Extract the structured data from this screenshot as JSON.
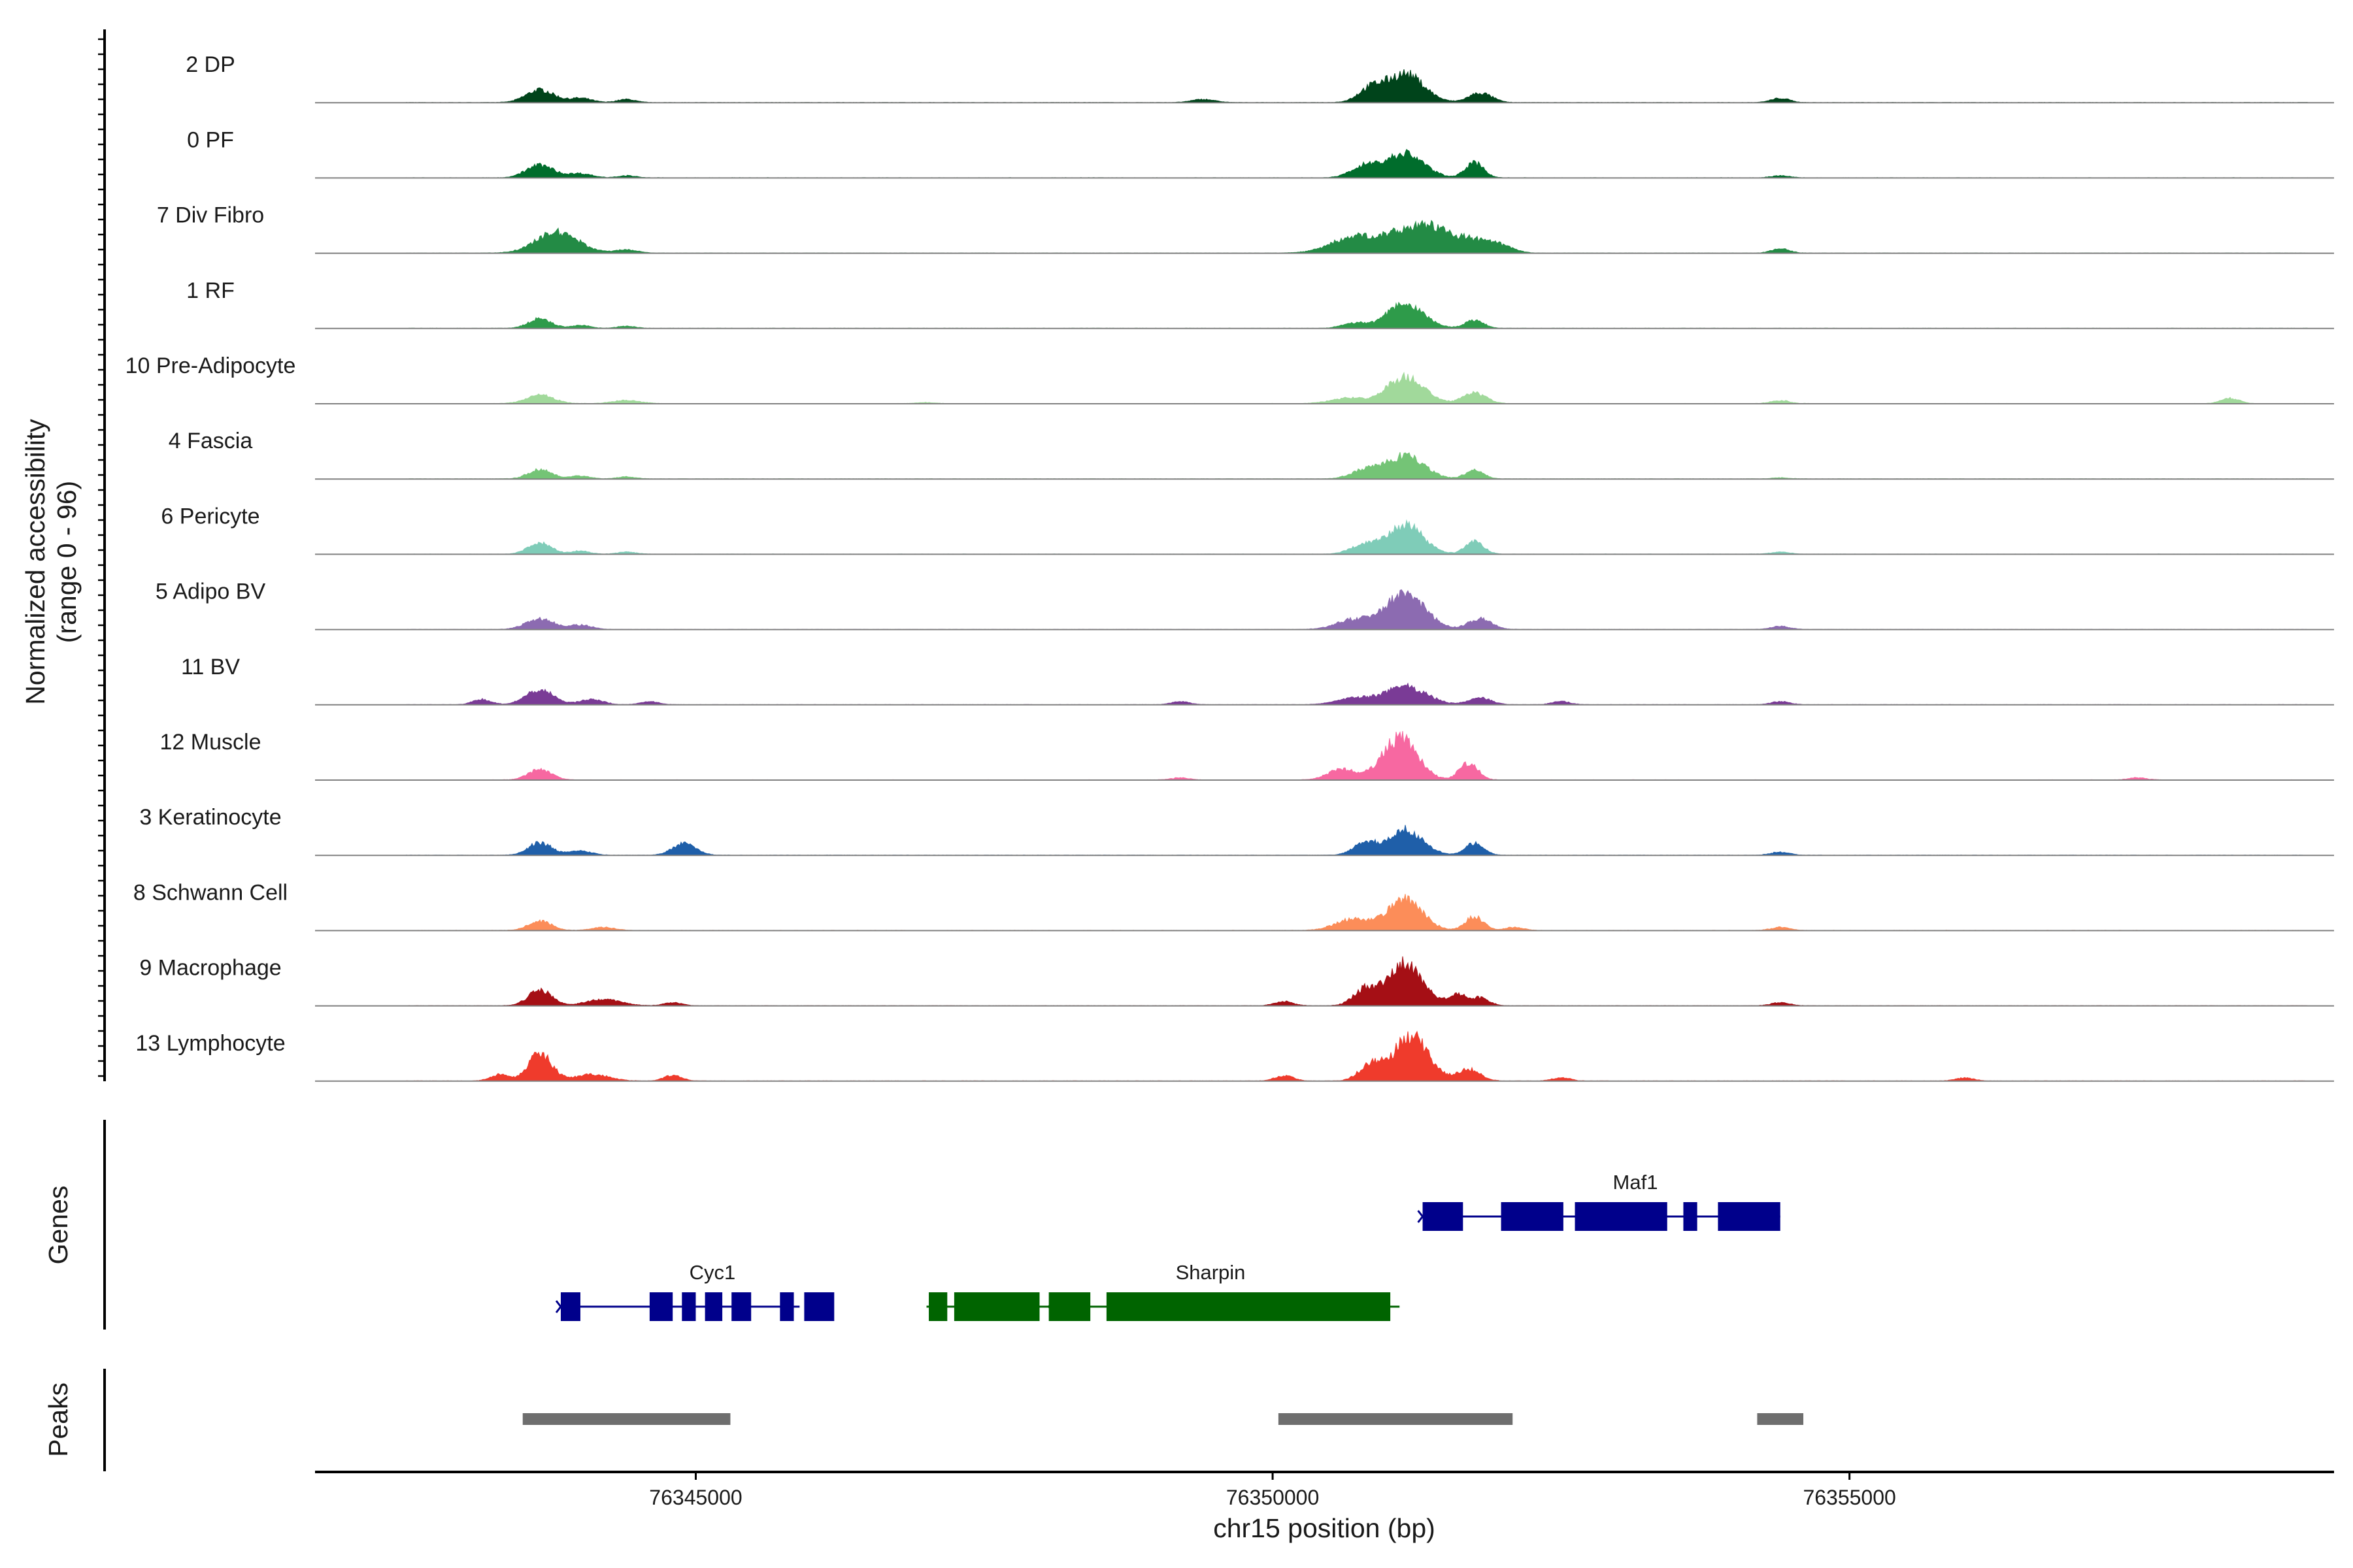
{
  "chart_data": {
    "type": "area",
    "title": "",
    "xlabel": "chr15 position (bp)",
    "ylabel": "Normalized accessibility",
    "ylabel_range": "(range 0 - 96)",
    "ylim": [
      0,
      96
    ],
    "xlim": [
      76341700,
      76359200
    ],
    "x_ticks": [
      76345000,
      76350000,
      76355000
    ],
    "x_tick_labels": [
      "76345000",
      "76350000",
      "76355000"
    ],
    "track_labels": {
      "genes": "Genes",
      "peaks": "Peaks"
    },
    "series": [
      {
        "name": "2 DP",
        "color": "#00441b",
        "peaks": [
          [
            76343650,
            12,
            120
          ],
          [
            76344000,
            4,
            100
          ],
          [
            76344400,
            3,
            80
          ],
          [
            76349400,
            3,
            100
          ],
          [
            76350850,
            12,
            110
          ],
          [
            76351150,
            27,
            160
          ],
          [
            76351800,
            9,
            100
          ],
          [
            76354400,
            4,
            80
          ]
        ]
      },
      {
        "name": "0 PF",
        "color": "#006d2c",
        "peaks": [
          [
            76343650,
            12,
            120
          ],
          [
            76344000,
            4,
            100
          ],
          [
            76344400,
            2,
            80
          ],
          [
            76350800,
            11,
            120
          ],
          [
            76351150,
            23,
            160
          ],
          [
            76351750,
            14,
            80
          ],
          [
            76354400,
            2,
            80
          ]
        ]
      },
      {
        "name": "7 Div Fibro",
        "color": "#238b45",
        "peaks": [
          [
            76343800,
            20,
            180
          ],
          [
            76344400,
            3,
            100
          ],
          [
            76350700,
            14,
            200
          ],
          [
            76351300,
            27,
            260
          ],
          [
            76351800,
            8,
            150
          ],
          [
            76352000,
            4,
            100
          ],
          [
            76354400,
            4,
            80
          ]
        ]
      },
      {
        "name": "1 RF",
        "color": "#2e9b4a",
        "peaks": [
          [
            76343650,
            9,
            100
          ],
          [
            76344000,
            3,
            80
          ],
          [
            76344400,
            2,
            80
          ],
          [
            76350700,
            5,
            100
          ],
          [
            76351150,
            23,
            160
          ],
          [
            76351750,
            8,
            80
          ]
        ]
      },
      {
        "name": "10 Pre-Adipocyte",
        "color": "#a1d99b",
        "peaks": [
          [
            76343650,
            8,
            120
          ],
          [
            76344400,
            3,
            120
          ],
          [
            76347000,
            1,
            80
          ],
          [
            76350650,
            5,
            150
          ],
          [
            76351150,
            25,
            160
          ],
          [
            76351750,
            10,
            100
          ],
          [
            76354400,
            3,
            80
          ],
          [
            76358300,
            5,
            80
          ]
        ]
      },
      {
        "name": "4 Fascia",
        "color": "#74c476",
        "peaks": [
          [
            76343650,
            9,
            100
          ],
          [
            76344000,
            3,
            80
          ],
          [
            76344400,
            2,
            80
          ],
          [
            76350800,
            8,
            120
          ],
          [
            76351150,
            22,
            160
          ],
          [
            76351750,
            8,
            80
          ],
          [
            76354400,
            1,
            80
          ]
        ]
      },
      {
        "name": "6 Pericyte",
        "color": "#7fccb8",
        "peaks": [
          [
            76343650,
            11,
            100
          ],
          [
            76344000,
            3,
            80
          ],
          [
            76344400,
            2,
            80
          ],
          [
            76350800,
            9,
            120
          ],
          [
            76351150,
            28,
            150
          ],
          [
            76351750,
            12,
            80
          ],
          [
            76354400,
            2,
            80
          ]
        ]
      },
      {
        "name": "5 Adipo BV",
        "color": "#8c6bb1",
        "peaks": [
          [
            76343650,
            10,
            120
          ],
          [
            76344000,
            4,
            100
          ],
          [
            76350700,
            9,
            150
          ],
          [
            76351150,
            34,
            170
          ],
          [
            76351800,
            10,
            100
          ],
          [
            76354400,
            3,
            80
          ]
        ]
      },
      {
        "name": "11 BV",
        "color": "#7a3b96",
        "peaks": [
          [
            76343150,
            5,
            80
          ],
          [
            76343650,
            14,
            120
          ],
          [
            76344100,
            5,
            100
          ],
          [
            76344600,
            3,
            80
          ],
          [
            76349200,
            3,
            80
          ],
          [
            76350700,
            6,
            150
          ],
          [
            76351150,
            17,
            180
          ],
          [
            76351800,
            6,
            100
          ],
          [
            76352500,
            3,
            80
          ],
          [
            76354400,
            3,
            80
          ]
        ]
      },
      {
        "name": "12 Muscle",
        "color": "#f768a1",
        "peaks": [
          [
            76343650,
            10,
            100
          ],
          [
            76350600,
            10,
            120
          ],
          [
            76351100,
            40,
            150
          ],
          [
            76351700,
            16,
            80
          ],
          [
            76349200,
            2,
            80
          ],
          [
            76357500,
            2,
            80
          ]
        ]
      },
      {
        "name": "3 Keratinocyte",
        "color": "#1f5fa9",
        "peaks": [
          [
            76343650,
            12,
            100
          ],
          [
            76344000,
            4,
            100
          ],
          [
            76344900,
            11,
            100
          ],
          [
            76350800,
            11,
            100
          ],
          [
            76351150,
            24,
            150
          ],
          [
            76351750,
            11,
            80
          ],
          [
            76354400,
            3,
            80
          ]
        ]
      },
      {
        "name": "8 Schwann Cell",
        "color": "#fc8d59",
        "peaks": [
          [
            76343650,
            9,
            100
          ],
          [
            76344200,
            3,
            100
          ],
          [
            76350700,
            11,
            150
          ],
          [
            76351150,
            29,
            150
          ],
          [
            76351750,
            13,
            80
          ],
          [
            76352100,
            3,
            80
          ],
          [
            76354400,
            3,
            80
          ]
        ]
      },
      {
        "name": "9 Macrophage",
        "color": "#a50f15",
        "peaks": [
          [
            76343650,
            15,
            100
          ],
          [
            76344200,
            6,
            150
          ],
          [
            76344800,
            3,
            80
          ],
          [
            76350100,
            4,
            80
          ],
          [
            76350800,
            15,
            100
          ],
          [
            76351150,
            40,
            150
          ],
          [
            76351600,
            10,
            80
          ],
          [
            76351800,
            7,
            80
          ],
          [
            76354400,
            3,
            80
          ]
        ]
      },
      {
        "name": "13 Lymphocyte",
        "color": "#ef3b2c",
        "peaks": [
          [
            76343300,
            6,
            80
          ],
          [
            76343650,
            26,
            100
          ],
          [
            76344100,
            6,
            150
          ],
          [
            76344800,
            5,
            80
          ],
          [
            76350100,
            5,
            80
          ],
          [
            76350850,
            15,
            100
          ],
          [
            76351200,
            42,
            150
          ],
          [
            76351700,
            11,
            100
          ],
          [
            76352500,
            3,
            80
          ],
          [
            76356000,
            3,
            80
          ]
        ]
      }
    ],
    "genes": [
      {
        "name": "Maf1",
        "strand": "+",
        "color": "#00008b",
        "start": 76351300,
        "end": 76354400,
        "exons": [
          [
            76351300,
            76351650
          ],
          [
            76351980,
            76352520
          ],
          [
            76352620,
            76353420
          ],
          [
            76353560,
            76353680
          ],
          [
            76353860,
            76354400
          ]
        ]
      },
      {
        "name": "Cyc1",
        "strand": "+",
        "color": "#00008b",
        "start": 76343830,
        "end": 76345900,
        "exons": [
          [
            76343830,
            76344000
          ],
          [
            76344600,
            76344800
          ],
          [
            76344880,
            76345000
          ],
          [
            76345080,
            76345230
          ],
          [
            76345310,
            76345480
          ],
          [
            76345730,
            76345850
          ],
          [
            76345940,
            76346200
          ]
        ]
      },
      {
        "name": "Sharpin",
        "strand": "-",
        "color": "#006400",
        "start": 76347000,
        "end": 76351100,
        "exons": [
          [
            76347020,
            76347180
          ],
          [
            76347240,
            76347980
          ],
          [
            76348060,
            76348420
          ],
          [
            76348560,
            76351020
          ]
        ]
      }
    ],
    "peaks_track": [
      [
        76343500,
        76345300
      ],
      [
        76350050,
        76352080
      ],
      [
        76354200,
        76354600
      ]
    ]
  }
}
